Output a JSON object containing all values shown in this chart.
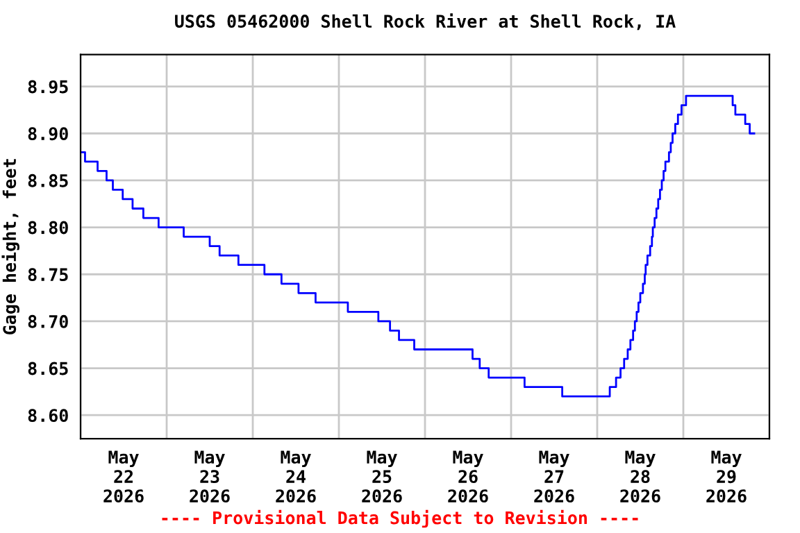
{
  "chart_data": {
    "type": "step",
    "title": "USGS 05462000 Shell Rock River at Shell Rock, IA",
    "ylabel": "Gage height, feet",
    "x": [
      "2026-05-22T00:00",
      "2026-05-22T01:15",
      "2026-05-22T04:45",
      "2026-05-22T07:15",
      "2026-05-22T09:00",
      "2026-05-22T11:45",
      "2026-05-22T14:30",
      "2026-05-22T17:30",
      "2026-05-22T21:45",
      "2026-05-23T04:45",
      "2026-05-23T12:00",
      "2026-05-23T14:45",
      "2026-05-23T20:00",
      "2026-05-24T03:15",
      "2026-05-24T08:00",
      "2026-05-24T12:45",
      "2026-05-24T17:30",
      "2026-05-25T02:30",
      "2026-05-25T11:00",
      "2026-05-25T14:15",
      "2026-05-25T16:45",
      "2026-05-25T21:00",
      "2026-05-26T13:15",
      "2026-05-26T15:15",
      "2026-05-26T17:45",
      "2026-05-27T03:45",
      "2026-05-27T14:15",
      "2026-05-28T03:30",
      "2026-05-28T05:15",
      "2026-05-28T06:30",
      "2026-05-28T07:30",
      "2026-05-28T08:30",
      "2026-05-28T09:15",
      "2026-05-28T10:00",
      "2026-05-28T10:30",
      "2026-05-28T11:00",
      "2026-05-28T11:30",
      "2026-05-28T12:00",
      "2026-05-28T12:45",
      "2026-05-28T13:15",
      "2026-05-28T13:30",
      "2026-05-28T14:00",
      "2026-05-28T14:45",
      "2026-05-28T15:15",
      "2026-05-28T15:30",
      "2026-05-28T16:00",
      "2026-05-28T16:30",
      "2026-05-28T17:00",
      "2026-05-28T17:30",
      "2026-05-28T18:00",
      "2026-05-28T18:30",
      "2026-05-28T19:00",
      "2026-05-28T20:00",
      "2026-05-28T20:30",
      "2026-05-28T21:00",
      "2026-05-28T21:45",
      "2026-05-28T22:30",
      "2026-05-28T23:30",
      "2026-05-29T00:45",
      "2026-05-29T13:45",
      "2026-05-29T14:30",
      "2026-05-29T17:15",
      "2026-05-29T18:30",
      "2026-05-29T19:45"
    ],
    "series": [
      {
        "color": "#0000ff",
        "values": [
          8.88,
          8.87,
          8.86,
          8.85,
          8.84,
          8.83,
          8.82,
          8.81,
          8.8,
          8.79,
          8.78,
          8.77,
          8.76,
          8.75,
          8.74,
          8.73,
          8.72,
          8.71,
          8.7,
          8.69,
          8.68,
          8.67,
          8.66,
          8.65,
          8.64,
          8.63,
          8.62,
          8.63,
          8.64,
          8.65,
          8.66,
          8.67,
          8.68,
          8.69,
          8.7,
          8.71,
          8.72,
          8.73,
          8.74,
          8.75,
          8.76,
          8.77,
          8.78,
          8.79,
          8.8,
          8.81,
          8.82,
          8.83,
          8.84,
          8.85,
          8.86,
          8.87,
          8.88,
          8.89,
          8.9,
          8.91,
          8.92,
          8.93,
          8.94,
          8.93,
          8.92,
          8.91,
          8.9,
          8.9
        ]
      }
    ],
    "xlim": [
      "2026-05-22T00:00",
      "2026-05-30T00:00"
    ],
    "xticks": [
      {
        "value": "2026-05-22T00:00",
        "label": null
      },
      {
        "value": "2026-05-22T12:00",
        "label": "May\n22\n2026"
      },
      {
        "value": "2026-05-23T00:00",
        "label": null
      },
      {
        "value": "2026-05-23T12:00",
        "label": "May\n23\n2026"
      },
      {
        "value": "2026-05-24T00:00",
        "label": null
      },
      {
        "value": "2026-05-24T12:00",
        "label": "May\n24\n2026"
      },
      {
        "value": "2026-05-25T00:00",
        "label": null
      },
      {
        "value": "2026-05-25T12:00",
        "label": "May\n25\n2026"
      },
      {
        "value": "2026-05-26T00:00",
        "label": null
      },
      {
        "value": "2026-05-26T12:00",
        "label": "May\n26\n2026"
      },
      {
        "value": "2026-05-27T00:00",
        "label": null
      },
      {
        "value": "2026-05-27T12:00",
        "label": "May\n27\n2026"
      },
      {
        "value": "2026-05-28T00:00",
        "label": null
      },
      {
        "value": "2026-05-28T12:00",
        "label": "May\n28\n2026"
      },
      {
        "value": "2026-05-29T00:00",
        "label": null
      },
      {
        "value": "2026-05-29T12:00",
        "label": "May\n29\n2026"
      },
      {
        "value": "2026-05-30T00:00",
        "label": null
      }
    ],
    "ylim": [
      8.575,
      8.984
    ],
    "yticks": [
      {
        "value": 8.6,
        "label": "8.60"
      },
      {
        "value": 8.65,
        "label": "8.65"
      },
      {
        "value": 8.7,
        "label": "8.70"
      },
      {
        "value": 8.75,
        "label": "8.75"
      },
      {
        "value": 8.8,
        "label": "8.80"
      },
      {
        "value": 8.85,
        "label": "8.85"
      },
      {
        "value": 8.9,
        "label": "8.90"
      },
      {
        "value": 8.95,
        "label": "8.95"
      }
    ],
    "grid": true,
    "legend": false,
    "annotations": [
      "---- Provisional Data Subject to Revision ----"
    ]
  }
}
